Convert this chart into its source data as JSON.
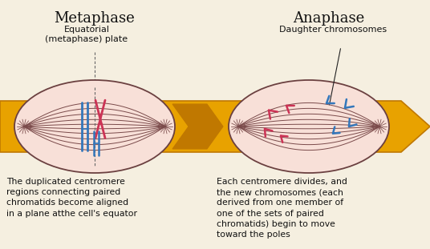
{
  "bg_color": "#f5efe0",
  "arrow_color": "#e8a200",
  "arrow_edge_color": "#c07800",
  "title1": "Metaphase",
  "title2": "Anaphase",
  "label1": "Equatorial\n(metaphase) plate",
  "label2": "Daughter chromosomes",
  "desc1": "The duplicated centromere\nregions connecting paired\nchromatids become aligned\nin a plane atthe cell's equator",
  "desc2": "Each centromere divides, and\nthe new chromosomes (each\nderived from one member of\none of the sets of paired\nchromatids) begin to move\ntoward the poles",
  "cell_color": "#f8e0d8",
  "cell_edge_color": "#6b4040",
  "spindle_color": "#7a4a4a",
  "chr_blue": "#3377bb",
  "chr_pink": "#cc3355",
  "text_color": "#111111",
  "title_fontsize": 13,
  "label_fontsize": 8,
  "desc_fontsize": 7.8
}
